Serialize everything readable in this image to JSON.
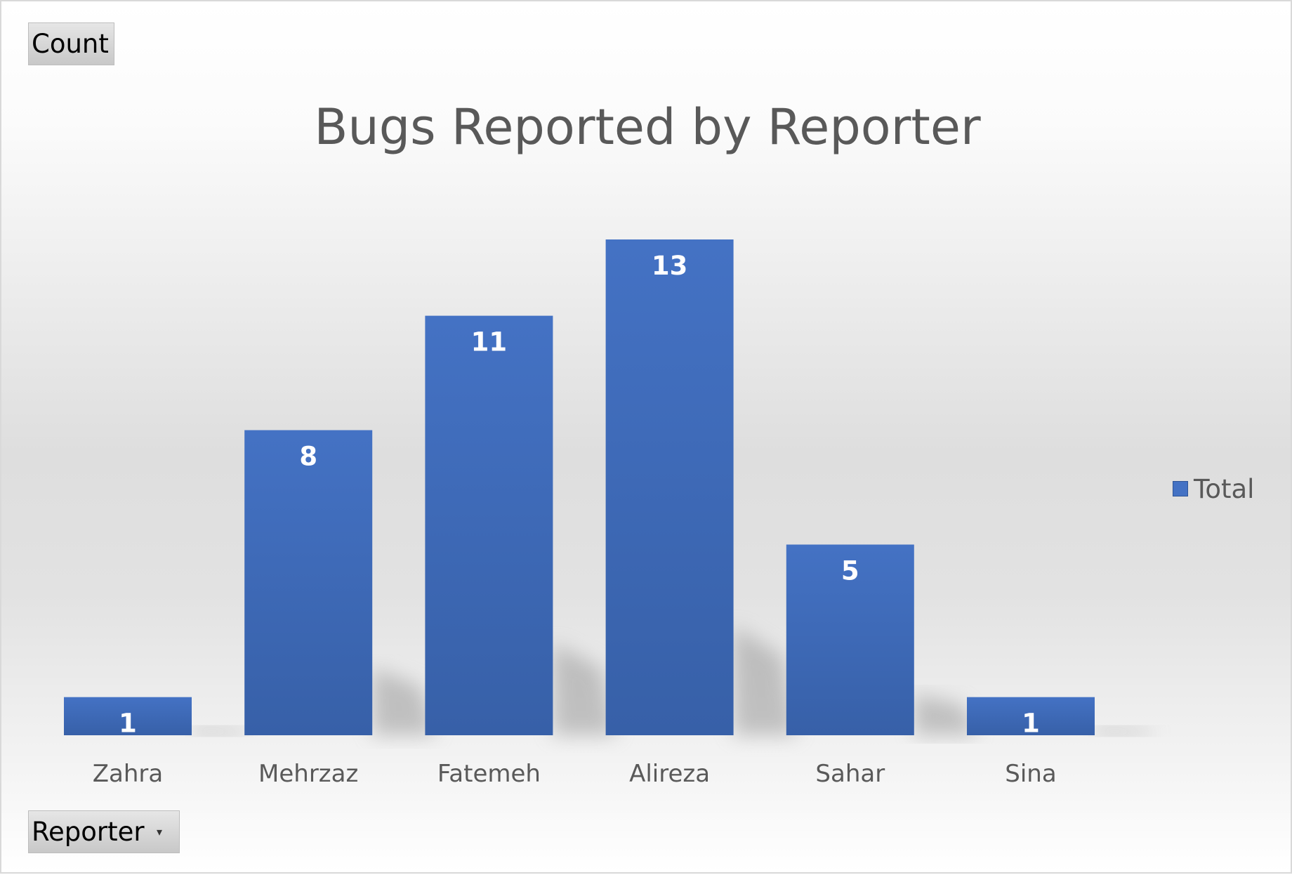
{
  "field_buttons": {
    "value_field": "Count",
    "axis_field": "Reporter",
    "axis_dropdown_icon": "chevron-down-icon"
  },
  "legend": {
    "label": "Total",
    "placement": "right"
  },
  "colors": {
    "bar": "#4472c4",
    "bar_dark": "#3760a8",
    "text": "#595959",
    "data_label": "#ffffff"
  },
  "chart_data": {
    "type": "bar",
    "title": "Bugs Reported by Reporter",
    "xlabel": "",
    "ylabel": "",
    "categories": [
      "Zahra",
      "Mehrzaz",
      "Fatemeh",
      "Alireza",
      "Sahar",
      "Sina"
    ],
    "series": [
      {
        "name": "Total",
        "values": [
          1,
          8,
          11,
          13,
          5,
          1
        ]
      }
    ],
    "ylim": [
      0,
      13
    ],
    "grid": false,
    "data_labels": true,
    "legend_placement": "right"
  }
}
